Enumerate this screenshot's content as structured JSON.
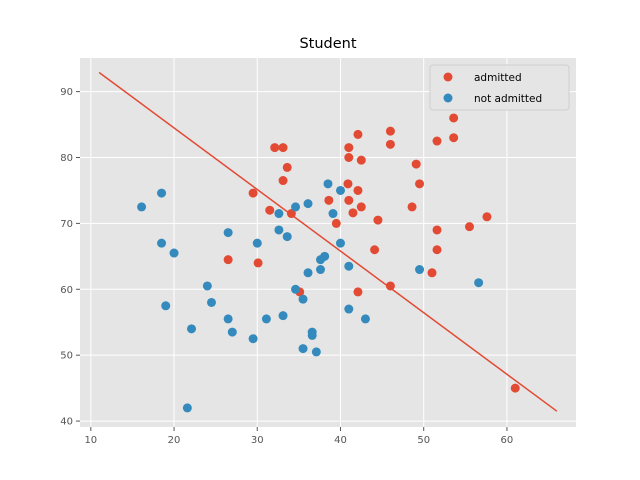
{
  "chart_data": {
    "type": "scatter",
    "title": "Student",
    "xlabel": "",
    "ylabel": "",
    "xlim": [
      8.7,
      68.3
    ],
    "ylim": [
      39.1,
      95.1
    ],
    "xticks": [
      10,
      20,
      30,
      40,
      50,
      60
    ],
    "yticks": [
      40,
      50,
      60,
      70,
      80,
      90
    ],
    "grid": true,
    "legend_position": "top-right",
    "series": [
      {
        "name": "admitted",
        "color": "#E24A33",
        "points": [
          [
            32.1,
            81.5
          ],
          [
            33.1,
            81.5
          ],
          [
            33.6,
            78.5
          ],
          [
            33.1,
            76.5
          ],
          [
            29.5,
            74.6
          ],
          [
            31.5,
            72.0
          ],
          [
            34.1,
            71.5
          ],
          [
            26.5,
            64.5
          ],
          [
            30.1,
            64.0
          ],
          [
            35.1,
            59.6
          ],
          [
            38.6,
            73.5
          ],
          [
            39.5,
            70.0
          ],
          [
            40.9,
            76.0
          ],
          [
            41.0,
            80.0
          ],
          [
            41.0,
            81.5
          ],
          [
            42.1,
            83.5
          ],
          [
            42.5,
            79.6
          ],
          [
            42.1,
            75.0
          ],
          [
            41.0,
            73.5
          ],
          [
            41.5,
            71.6
          ],
          [
            42.5,
            72.5
          ],
          [
            44.5,
            70.5
          ],
          [
            44.1,
            66.0
          ],
          [
            42.1,
            59.6
          ],
          [
            46.0,
            60.5
          ],
          [
            46.0,
            84.0
          ],
          [
            46.0,
            82.0
          ],
          [
            49.1,
            79.0
          ],
          [
            49.5,
            76.0
          ],
          [
            48.6,
            72.5
          ],
          [
            51.6,
            82.5
          ],
          [
            53.6,
            86.0
          ],
          [
            53.6,
            83.0
          ],
          [
            51.6,
            69.0
          ],
          [
            51.6,
            66.0
          ],
          [
            51.0,
            62.5
          ],
          [
            55.5,
            69.5
          ],
          [
            57.6,
            71.0
          ],
          [
            61.0,
            45.0
          ]
        ]
      },
      {
        "name": "not admitted",
        "color": "#348ABD",
        "points": [
          [
            16.1,
            72.5
          ],
          [
            18.5,
            74.6
          ],
          [
            18.5,
            67.0
          ],
          [
            20.0,
            65.5
          ],
          [
            19.0,
            57.5
          ],
          [
            22.1,
            54.0
          ],
          [
            21.6,
            42.0
          ],
          [
            24.0,
            60.5
          ],
          [
            24.5,
            58.0
          ],
          [
            26.5,
            68.6
          ],
          [
            26.5,
            55.5
          ],
          [
            27.0,
            53.5
          ],
          [
            29.5,
            52.5
          ],
          [
            30.0,
            67.0
          ],
          [
            31.1,
            55.5
          ],
          [
            32.6,
            71.5
          ],
          [
            32.6,
            69.0
          ],
          [
            33.6,
            68.0
          ],
          [
            33.1,
            56.0
          ],
          [
            34.6,
            72.5
          ],
          [
            34.6,
            60.0
          ],
          [
            35.5,
            58.5
          ],
          [
            35.5,
            51.0
          ],
          [
            36.1,
            73.0
          ],
          [
            36.1,
            62.5
          ],
          [
            36.6,
            53.5
          ],
          [
            36.6,
            53.0
          ],
          [
            37.1,
            50.5
          ],
          [
            37.6,
            64.5
          ],
          [
            37.6,
            63.0
          ],
          [
            38.1,
            65.0
          ],
          [
            38.5,
            76.0
          ],
          [
            39.1,
            71.5
          ],
          [
            40.0,
            75.0
          ],
          [
            40.0,
            67.0
          ],
          [
            41.0,
            63.5
          ],
          [
            41.0,
            57.0
          ],
          [
            43.0,
            55.5
          ],
          [
            49.5,
            63.0
          ],
          [
            56.6,
            61.0
          ]
        ]
      }
    ],
    "decision_boundary": {
      "color": "#E24A33",
      "x": [
        11.0,
        66.0
      ],
      "y": [
        92.9,
        41.5
      ]
    }
  }
}
